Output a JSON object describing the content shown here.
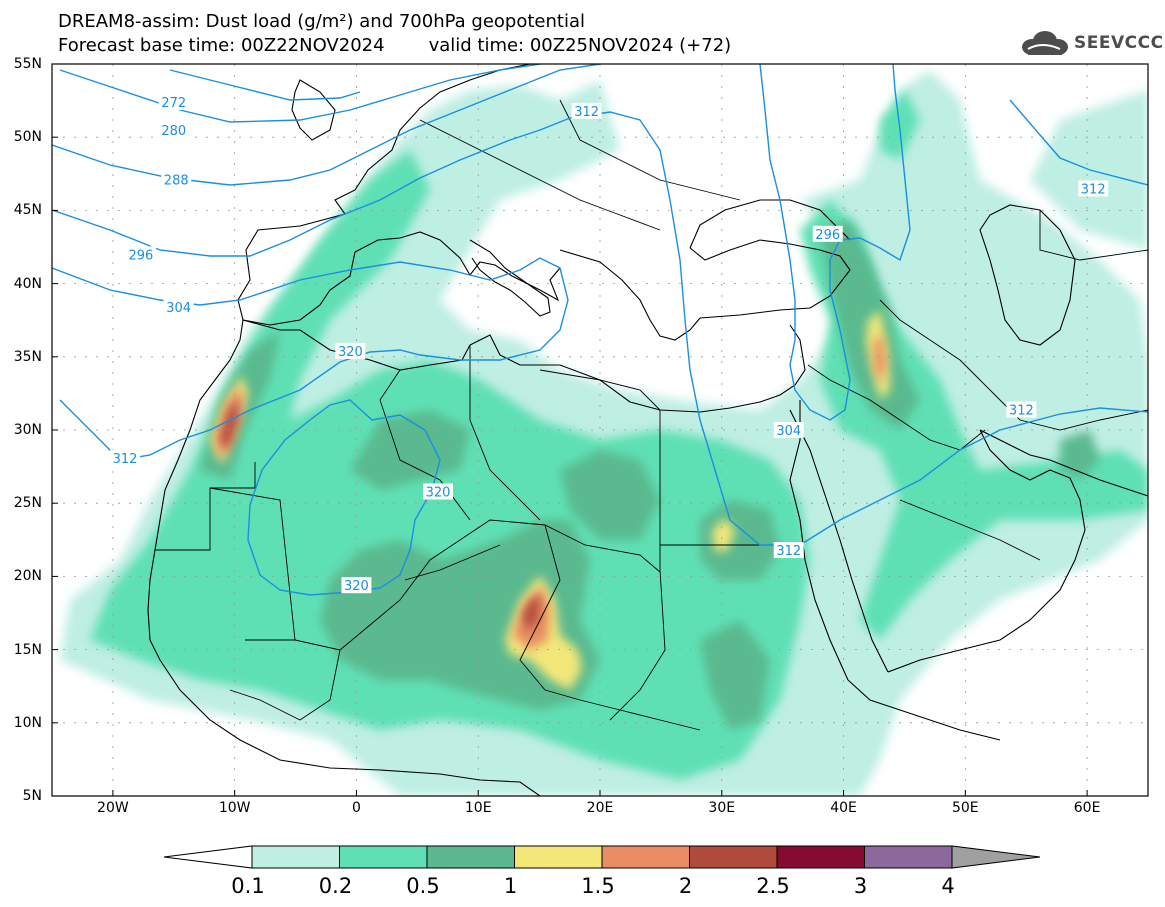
{
  "title": {
    "line1": "DREAM8-assim: Dust load (g/m²) and 700hPa geopotential",
    "base_time": "Forecast base time: 00Z22NOV2024",
    "valid_time": "valid time: 00Z25NOV2024 (+72)"
  },
  "logo": {
    "text": "SEEVCCC",
    "icon": "cloud-icon"
  },
  "map": {
    "lon_range": [
      -25,
      65
    ],
    "lat_range": [
      5,
      55
    ],
    "y_ticks": [
      "55N",
      "50N",
      "45N",
      "40N",
      "35N",
      "30N",
      "25N",
      "20N",
      "15N",
      "10N",
      "5N"
    ],
    "x_ticks": [
      "20W",
      "10W",
      "0",
      "10E",
      "20E",
      "30E",
      "40E",
      "50E",
      "60E"
    ],
    "contour_labels": [
      {
        "text": "272",
        "lon": -15.0,
        "lat": 52.4
      },
      {
        "text": "280",
        "lon": -15.0,
        "lat": 50.5
      },
      {
        "text": "288",
        "lon": -14.8,
        "lat": 47.1
      },
      {
        "text": "296",
        "lon": -17.7,
        "lat": 42.0
      },
      {
        "text": "304",
        "lon": -14.6,
        "lat": 38.4
      },
      {
        "text": "320",
        "lon": -0.5,
        "lat": 35.4
      },
      {
        "text": "320",
        "lon": 6.7,
        "lat": 25.8
      },
      {
        "text": "320",
        "lon": 0.0,
        "lat": 19.4
      },
      {
        "text": "312",
        "lon": -19.0,
        "lat": 28.1
      },
      {
        "text": "312",
        "lon": 18.9,
        "lat": 51.8
      },
      {
        "text": "312",
        "lon": 60.5,
        "lat": 46.5
      },
      {
        "text": "312",
        "lon": 54.6,
        "lat": 31.4
      },
      {
        "text": "312",
        "lon": 35.5,
        "lat": 21.8
      },
      {
        "text": "304",
        "lon": 35.5,
        "lat": 30.0
      },
      {
        "text": "296",
        "lon": 38.7,
        "lat": 43.4
      }
    ]
  },
  "colorbar": {
    "labels": [
      "0.1",
      "0.2",
      "0.5",
      "1",
      "1.5",
      "2",
      "2.5",
      "3",
      "4"
    ],
    "colors": [
      "#bfeee3",
      "#5ee0b4",
      "#5ab98f",
      "#f3e77a",
      "#e98e64",
      "#b04a3c",
      "#850b30",
      "#8b699c"
    ],
    "over_color": "#a0a0a0",
    "under_color": "#ffffff"
  },
  "colors": {
    "geopotential_contour": "#1a8fe0",
    "coastline": "#000000",
    "gridline": "#999999"
  }
}
